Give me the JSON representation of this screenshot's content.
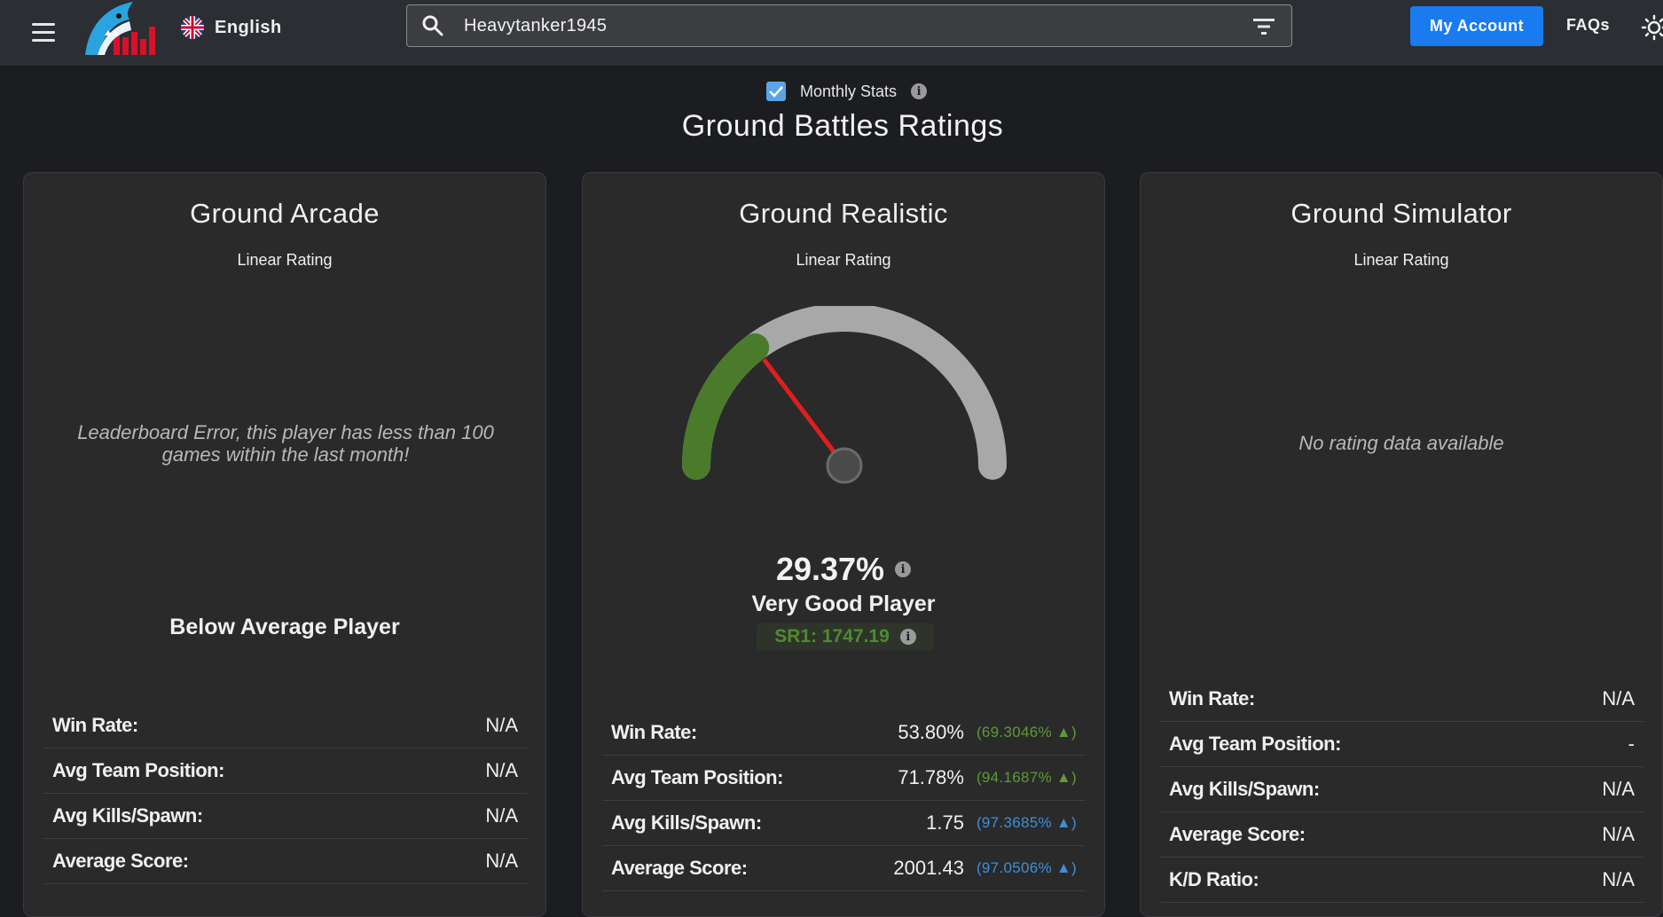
{
  "topbar": {
    "language": "English",
    "search_value": "Heavytanker1945",
    "account_label": "My Account",
    "faqs_label": "FAQs"
  },
  "colors": {
    "accent_blue": "#1a7bf0",
    "good_green": "#4f8a2f",
    "gauge_track": "#a8a8a8",
    "needle_red": "#e01e1e",
    "percentile_blue": "#3f8fd6"
  },
  "header": {
    "monthly_label": "Monthly Stats",
    "monthly_checked": true,
    "title": "Ground Battles Ratings"
  },
  "cards": [
    {
      "title": "Ground Arcade",
      "subtitle": "Linear Rating",
      "message": "Leaderboard Error, this player has less than 100 games within the last month!",
      "level": "Below Average Player",
      "stats": [
        {
          "label": "Win Rate:",
          "value": "N/A"
        },
        {
          "label": "Avg Team Position:",
          "value": "N/A"
        },
        {
          "label": "Avg Kills/Spawn:",
          "value": "N/A"
        },
        {
          "label": "Average Score:",
          "value": "N/A"
        }
      ]
    },
    {
      "title": "Ground Realistic",
      "subtitle": "Linear Rating",
      "gauge_fraction": 0.2937,
      "percent": "29.37%",
      "level": "Very Good Player",
      "sr1": "SR1: 1747.19",
      "stats": [
        {
          "label": "Win Rate:",
          "value": "53.80%",
          "delta": "(69.3046% ▲)",
          "delta_color": "green"
        },
        {
          "label": "Avg Team Position:",
          "value": "71.78%",
          "delta": "(94.1687% ▲)",
          "delta_color": "green"
        },
        {
          "label": "Avg Kills/Spawn:",
          "value": "1.75",
          "delta": "(97.3685% ▲)",
          "delta_color": "blue"
        },
        {
          "label": "Average Score:",
          "value": "2001.43",
          "delta": "(97.0506% ▲)",
          "delta_color": "blue"
        }
      ]
    },
    {
      "title": "Ground Simulator",
      "subtitle": "Linear Rating",
      "message": "No rating data available",
      "stats": [
        {
          "label": "Win Rate:",
          "value": "N/A"
        },
        {
          "label": "Avg Team Position:",
          "value": "-"
        },
        {
          "label": "Avg Kills/Spawn:",
          "value": "N/A"
        },
        {
          "label": "Average Score:",
          "value": "N/A"
        },
        {
          "label": "K/D Ratio:",
          "value": "N/A"
        }
      ]
    }
  ]
}
